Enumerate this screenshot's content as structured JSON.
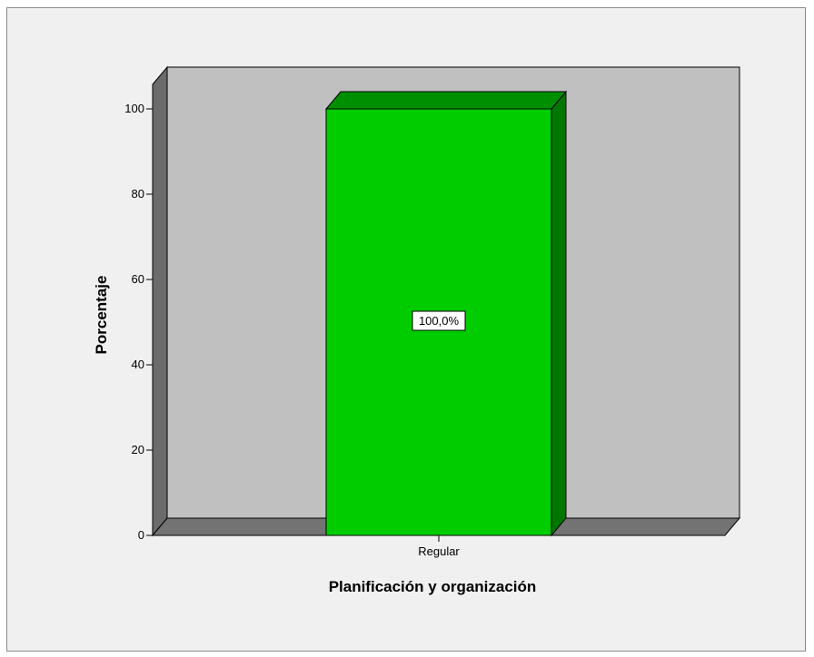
{
  "chart_data": {
    "type": "bar",
    "categories": [
      "Regular"
    ],
    "values": [
      100
    ],
    "data_labels": [
      "100,0%"
    ],
    "title": "",
    "xlabel": "Planificación y organización",
    "ylabel": "Porcentaje",
    "ylim": [
      0,
      100
    ],
    "yticks": [
      0,
      20,
      40,
      60,
      80,
      100
    ],
    "grid": false,
    "legend": "none",
    "style": "3d",
    "colors": {
      "bar_front": "#00cc00",
      "bar_top": "#008f00",
      "bar_side": "#007700",
      "back_wall": "#c0c0c0",
      "floor": "#737373",
      "left_wall": "#6b6b6b",
      "background": "#f0f0f0"
    }
  }
}
